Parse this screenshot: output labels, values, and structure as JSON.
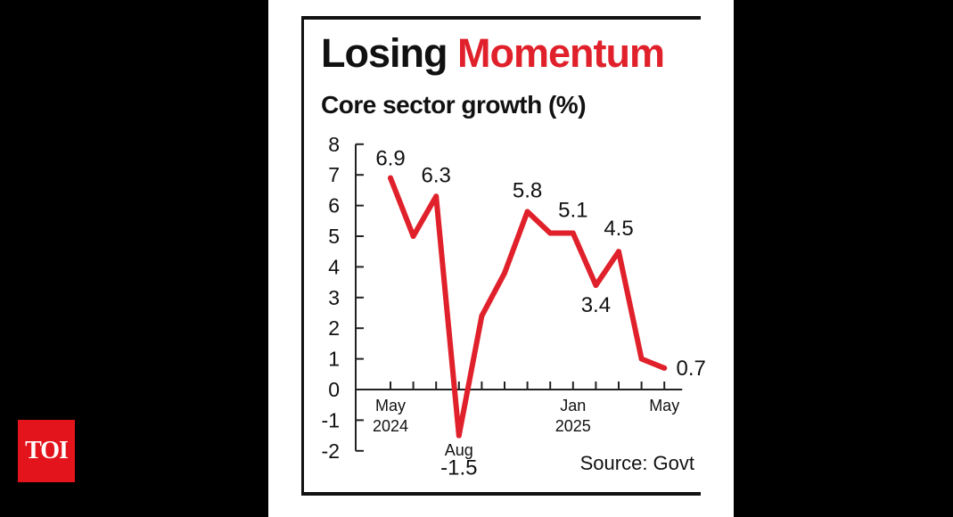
{
  "logo": {
    "text": "TOI"
  },
  "title": {
    "part1": "Losing",
    "part2": "Momentum"
  },
  "subtitle": "Core sector growth (%)",
  "source": "Source: Govt",
  "colors": {
    "accent": "#e0202a",
    "text": "#111111",
    "background": "#ffffff",
    "logo": "#e3141b"
  },
  "chart_data": {
    "type": "line",
    "ylim": [
      -2,
      8
    ],
    "yticks": [
      8,
      7,
      6,
      5,
      4,
      3,
      2,
      1,
      0,
      -1,
      -2
    ],
    "x": [
      "May 2024",
      "Jun 2024",
      "Jul 2024",
      "Aug 2024",
      "Sep 2024",
      "Oct 2024",
      "Nov 2024",
      "Dec 2024",
      "Jan 2025",
      "Feb 2025",
      "Mar 2025",
      "Apr 2025",
      "May 2025"
    ],
    "values": [
      6.9,
      5.0,
      6.3,
      -1.5,
      2.4,
      3.8,
      5.8,
      5.1,
      5.1,
      3.4,
      4.5,
      1.0,
      0.7
    ],
    "data_labels": [
      {
        "index": 0,
        "text": "6.9"
      },
      {
        "index": 2,
        "text": "6.3"
      },
      {
        "index": 3,
        "text": "-1.5"
      },
      {
        "index": 6,
        "text": "5.8"
      },
      {
        "index": 8,
        "text": "5.1"
      },
      {
        "index": 9,
        "text": "3.4"
      },
      {
        "index": 10,
        "text": "4.5"
      },
      {
        "index": 12,
        "text": "0.7"
      }
    ],
    "x_tick_labels": [
      {
        "index": 0,
        "lines": [
          "May",
          "2024"
        ]
      },
      {
        "index": 3,
        "lines": [
          "Aug"
        ]
      },
      {
        "index": 8,
        "lines": [
          "Jan",
          "2025"
        ]
      },
      {
        "index": 12,
        "lines": [
          "May"
        ]
      }
    ],
    "grid": false
  }
}
